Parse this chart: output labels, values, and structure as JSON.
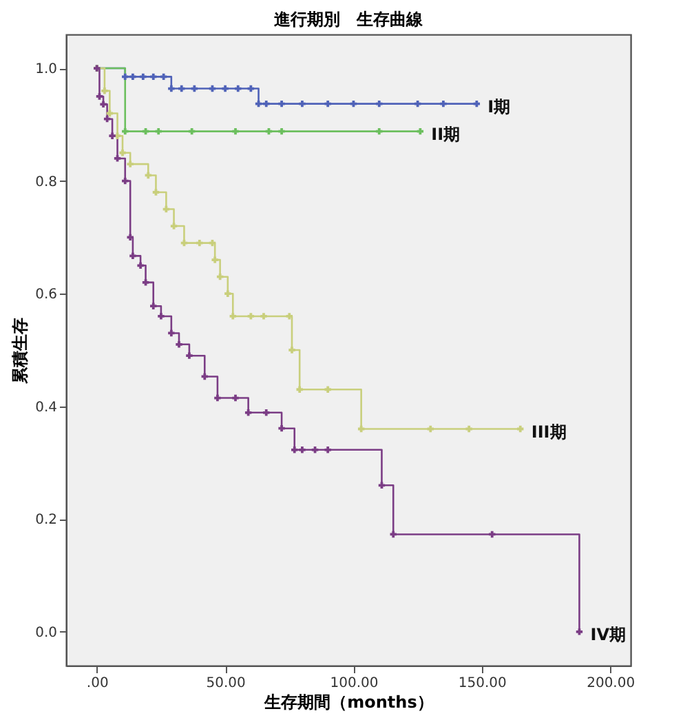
{
  "chart_data": {
    "type": "step",
    "title": "進行期別　生存曲線",
    "xlabel": "生存期間（months）",
    "ylabel": "累積生存",
    "xlim": [
      -12,
      208
    ],
    "ylim": [
      -0.06,
      1.06
    ],
    "xticks": [
      {
        "value": 0,
        "label": ".00"
      },
      {
        "value": 50,
        "label": "50.00"
      },
      {
        "value": 100,
        "label": "100.00"
      },
      {
        "value": 150,
        "label": "150.00"
      },
      {
        "value": 200,
        "label": "200.00"
      }
    ],
    "yticks": [
      {
        "value": 0,
        "label": "0.0"
      },
      {
        "value": 0.2,
        "label": "0.2"
      },
      {
        "value": 0.4,
        "label": "0.4"
      },
      {
        "value": 0.6,
        "label": "0.6"
      },
      {
        "value": 0.8,
        "label": "0.8"
      },
      {
        "value": 1,
        "label": "1.0"
      }
    ],
    "grid": false,
    "legend": false,
    "marker": "cross",
    "line_style": "solid",
    "series": [
      {
        "name": "I期",
        "color": "#4f62b8",
        "x": [
          0,
          11,
          14,
          18,
          22,
          26,
          29,
          33,
          38,
          45,
          50,
          55,
          60,
          63,
          66,
          72,
          80,
          90,
          100,
          110,
          125,
          135,
          148
        ],
        "values": [
          1,
          0.985,
          0.985,
          0.985,
          0.985,
          0.985,
          0.964,
          0.964,
          0.964,
          0.964,
          0.964,
          0.964,
          0.964,
          0.937,
          0.937,
          0.937,
          0.937,
          0.937,
          0.937,
          0.937,
          0.937,
          0.937,
          0.937
        ]
      },
      {
        "name": "II期",
        "color": "#6cbf5e",
        "x": [
          0,
          11,
          19,
          24,
          37,
          54,
          67,
          72,
          110,
          126
        ],
        "values": [
          1,
          0.888,
          0.888,
          0.888,
          0.888,
          0.888,
          0.888,
          0.888,
          0.888,
          0.888
        ]
      },
      {
        "name": "III期",
        "color": "#c9cf7c",
        "x": [
          0,
          3,
          5,
          8,
          10,
          13,
          20,
          23,
          27,
          30,
          34,
          40,
          45,
          46,
          48,
          51,
          53,
          60,
          65,
          75,
          76,
          79,
          90,
          103,
          130,
          145,
          165
        ],
        "values": [
          1,
          0.96,
          0.92,
          0.88,
          0.85,
          0.83,
          0.81,
          0.78,
          0.75,
          0.72,
          0.69,
          0.69,
          0.69,
          0.66,
          0.63,
          0.6,
          0.56,
          0.56,
          0.56,
          0.56,
          0.5,
          0.43,
          0.43,
          0.36,
          0.36,
          0.36,
          0.36
        ]
      },
      {
        "name": "IV期",
        "color": "#7b3d85",
        "x": [
          0,
          1,
          2.5,
          4,
          6,
          8,
          11,
          13,
          14,
          17,
          19,
          22,
          25,
          29,
          32,
          36,
          42,
          47,
          54,
          59,
          66,
          72,
          77,
          80,
          85,
          90,
          111,
          115.5,
          154,
          188
        ],
        "values": [
          1,
          0.95,
          0.936,
          0.91,
          0.88,
          0.84,
          0.8,
          0.7,
          0.667,
          0.65,
          0.62,
          0.578,
          0.56,
          0.53,
          0.51,
          0.49,
          0.453,
          0.415,
          0.415,
          0.389,
          0.389,
          0.361,
          0.323,
          0.323,
          0.323,
          0.323,
          0.26,
          0.173,
          0.173,
          0
        ]
      }
    ]
  }
}
